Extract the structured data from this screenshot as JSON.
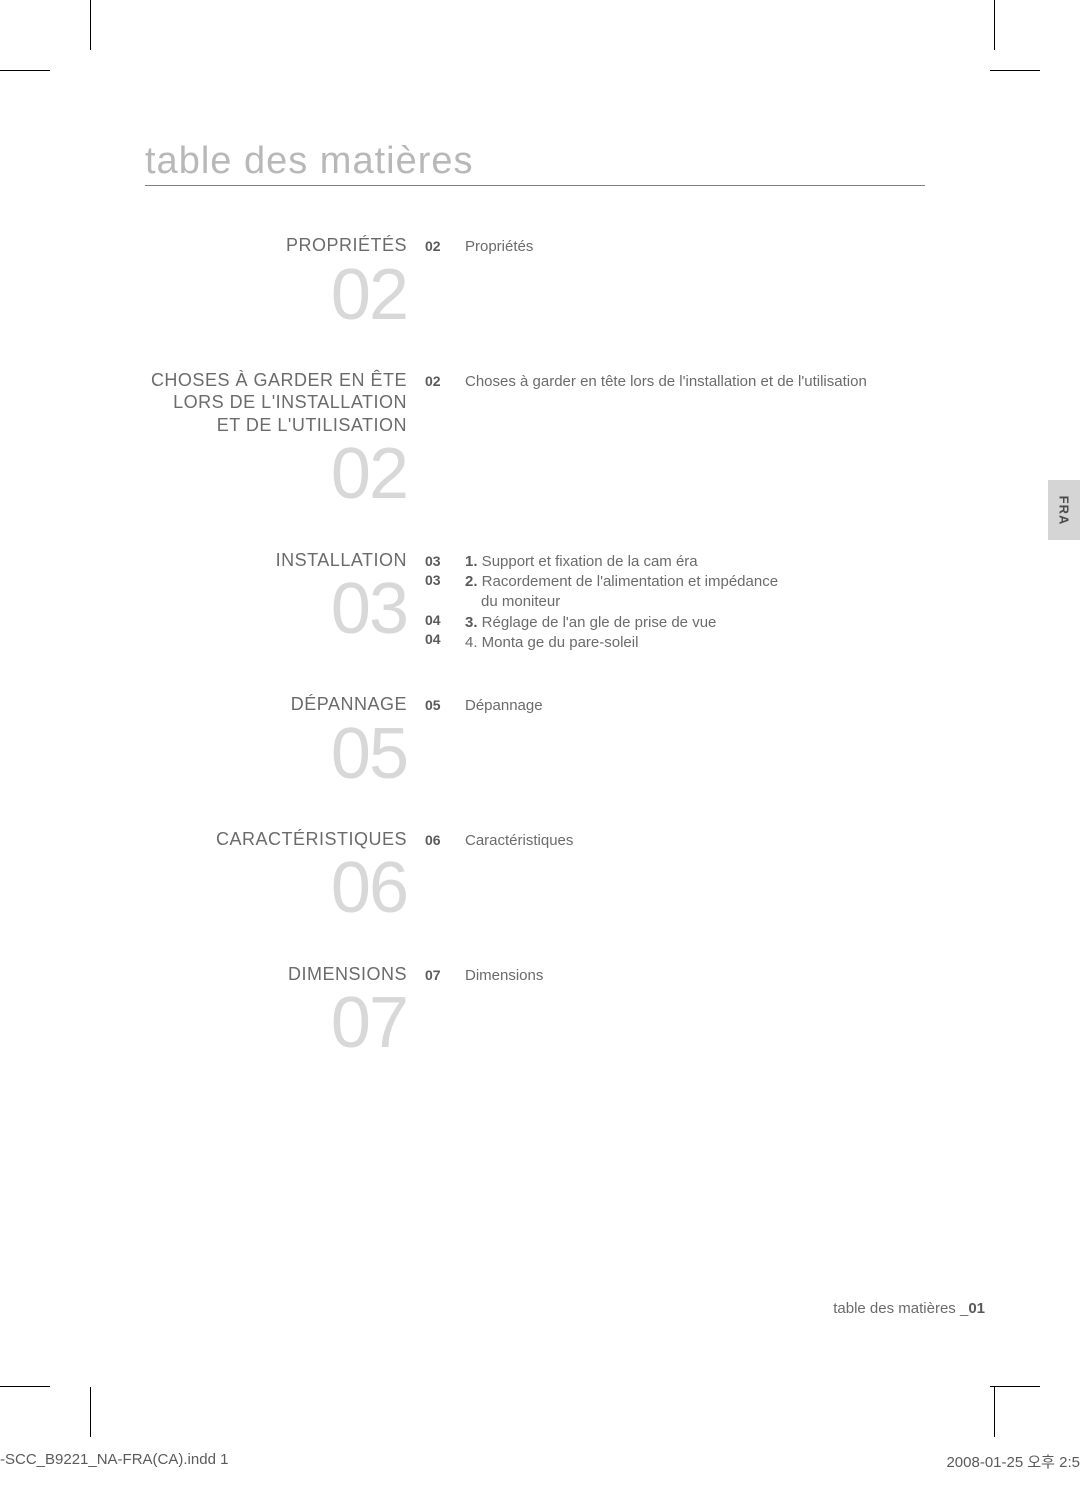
{
  "pageTitle": "table des matières",
  "langTab": "FRA",
  "sections": [
    {
      "heading": "PROPRIÉTÉS",
      "bigNumber": "02",
      "items": [
        {
          "page": "02",
          "text": "Propriétés",
          "bold": false
        }
      ]
    },
    {
      "heading": "CHOSES À GARDER EN ÊTE LORS DE L'INSTALLATION ET DE L'UTILISATION",
      "bigNumber": "02",
      "items": [
        {
          "page": "02",
          "text": "Choses à garder en tête lors de l'installation et de l'utilisation",
          "bold": false
        }
      ]
    },
    {
      "heading": "INSTALLATION",
      "bigNumber": "03",
      "items": [
        {
          "page": "03",
          "prefix": "1.",
          "text": " Support et fixation de la cam éra",
          "bold": true
        },
        {
          "page": "03",
          "prefix": "2.",
          "text": " Racordement de l'alimentation et impédance",
          "bold": true
        },
        {
          "page": "",
          "text": "du moniteur",
          "bold": false,
          "indent": true
        },
        {
          "page": "04",
          "prefix": "3.",
          "text": " Réglage de l'an gle de prise de vue",
          "bold": true
        },
        {
          "page": "04",
          "prefix": "",
          "text": "4. Monta ge du pare-soleil",
          "bold": false
        }
      ]
    },
    {
      "heading": "DÉPANNAGE",
      "bigNumber": "05",
      "items": [
        {
          "page": "05",
          "text": "Dépannage",
          "bold": false
        }
      ]
    },
    {
      "heading": "CARACTÉRISTIQUES",
      "bigNumber": "06",
      "items": [
        {
          "page": "06",
          "text": "Caractéristiques",
          "bold": false
        }
      ]
    },
    {
      "heading": "DIMENSIONS",
      "bigNumber": "07",
      "items": [
        {
          "page": "07",
          "text": "Dimensions",
          "bold": false
        }
      ]
    }
  ],
  "footer": {
    "label": "table des matières _",
    "page": "01"
  },
  "inddLeft": "-SCC_B9221_NA-FRA(CA).indd   1",
  "inddRight": "2008-01-25   오후 2:5"
}
